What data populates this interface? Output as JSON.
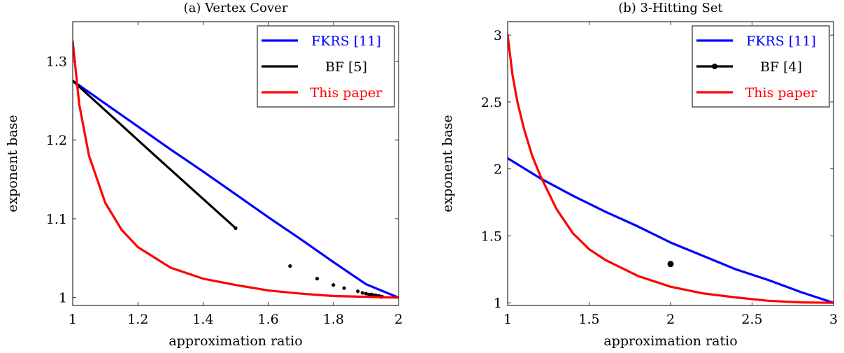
{
  "chart_data": [
    {
      "type": "line",
      "title": "(a) Vertex Cover",
      "xlabel": "approximation ratio",
      "ylabel": "exponent base",
      "xlim": [
        1,
        2
      ],
      "ylim": [
        0.99,
        1.35
      ],
      "xticks": [
        1,
        1.2,
        1.4,
        1.6,
        1.8,
        2
      ],
      "xtick_labels": [
        "1",
        "1.2",
        "1.4",
        "1.6",
        "1.8",
        "2"
      ],
      "yticks": [
        1,
        1.1,
        1.2,
        1.3
      ],
      "ytick_labels": [
        "1",
        "1.1",
        "1.2",
        "1.3"
      ],
      "grid": false,
      "legend_position": "top-right",
      "series": [
        {
          "name": "FKRS [11]",
          "color": "#0000ff",
          "style": "line",
          "x": [
            1.0,
            1.1,
            1.2,
            1.3,
            1.4,
            1.5,
            1.6,
            1.7,
            1.8,
            1.9,
            2.0
          ],
          "y": [
            1.275,
            1.246,
            1.217,
            1.188,
            1.16,
            1.131,
            1.102,
            1.074,
            1.045,
            1.017,
            1.0
          ]
        },
        {
          "name": "BF [5]",
          "color": "#000000",
          "style": "line+points",
          "x": [
            1.0,
            1.25,
            1.5
          ],
          "y": [
            1.275,
            1.181,
            1.088
          ],
          "points_x": [
            1.5,
            1.667,
            1.75,
            1.8,
            1.833,
            1.875,
            1.889,
            1.9,
            1.909,
            1.917,
            1.923,
            1.929,
            1.933,
            1.938,
            1.941,
            1.944,
            1.947,
            1.95
          ],
          "points_y": [
            1.088,
            1.04,
            1.024,
            1.016,
            1.012,
            1.008,
            1.006,
            1.005,
            1.004,
            1.004,
            1.003,
            1.003,
            1.002,
            1.002,
            1.002,
            1.001,
            1.001,
            1.001
          ]
        },
        {
          "name": "This paper",
          "color": "#ff0000",
          "style": "line",
          "x": [
            1.0,
            1.02,
            1.05,
            1.1,
            1.15,
            1.2,
            1.3,
            1.4,
            1.5,
            1.6,
            1.7,
            1.8,
            1.9,
            2.0
          ],
          "y": [
            1.325,
            1.245,
            1.18,
            1.12,
            1.086,
            1.064,
            1.038,
            1.024,
            1.016,
            1.009,
            1.005,
            1.002,
            1.001,
            1.0
          ]
        }
      ]
    },
    {
      "type": "line",
      "title": "(b) 3-Hitting Set",
      "xlabel": "approximation ratio",
      "ylabel": "exponent base",
      "xlim": [
        1,
        3
      ],
      "ylim": [
        0.98,
        3.1
      ],
      "xticks": [
        1,
        1.5,
        2,
        2.5,
        3
      ],
      "xtick_labels": [
        "1",
        "1.5",
        "2",
        "2.5",
        "3"
      ],
      "yticks": [
        1,
        1.5,
        2,
        2.5,
        3
      ],
      "ytick_labels": [
        "1",
        "1.5",
        "2",
        "2.5",
        "3"
      ],
      "grid": false,
      "legend_position": "top-right",
      "series": [
        {
          "name": "FKRS [11]",
          "color": "#0000ff",
          "style": "line",
          "x": [
            1.0,
            1.2,
            1.4,
            1.6,
            1.8,
            2.0,
            2.2,
            2.4,
            2.6,
            2.8,
            3.0
          ],
          "y": [
            2.08,
            1.93,
            1.8,
            1.68,
            1.57,
            1.45,
            1.35,
            1.25,
            1.17,
            1.08,
            1.0
          ]
        },
        {
          "name": "BF [4]",
          "color": "#000000",
          "style": "points",
          "points_x": [
            2.0
          ],
          "points_y": [
            1.29
          ]
        },
        {
          "name": "This paper",
          "color": "#ff0000",
          "style": "line",
          "x": [
            1.0,
            1.03,
            1.06,
            1.1,
            1.15,
            1.2,
            1.3,
            1.4,
            1.5,
            1.6,
            1.8,
            2.0,
            2.2,
            2.4,
            2.6,
            2.8,
            3.0
          ],
          "y": [
            3.0,
            2.7,
            2.5,
            2.3,
            2.1,
            1.95,
            1.7,
            1.52,
            1.4,
            1.32,
            1.2,
            1.12,
            1.07,
            1.04,
            1.015,
            1.003,
            1.0
          ]
        }
      ]
    }
  ]
}
